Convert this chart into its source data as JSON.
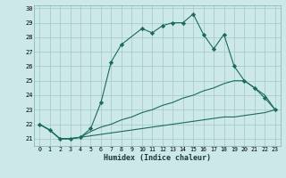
{
  "xlabel": "Humidex (Indice chaleur)",
  "ylabel": "",
  "bg_color": "#cde8e8",
  "grid_color": "#aacccc",
  "line_color": "#1a6b5a",
  "xlim": [
    -0.5,
    23.5
  ],
  "ylim": [
    20.5,
    30.2
  ],
  "yticks": [
    21,
    22,
    23,
    24,
    25,
    26,
    27,
    28,
    29,
    30
  ],
  "xticks": [
    0,
    1,
    2,
    3,
    4,
    5,
    6,
    7,
    8,
    9,
    10,
    11,
    12,
    13,
    14,
    15,
    16,
    17,
    18,
    19,
    20,
    21,
    22,
    23
  ],
  "series": [
    {
      "x": [
        0,
        1,
        2,
        3,
        4,
        5,
        6,
        7,
        8,
        9,
        10,
        11,
        12,
        13,
        14,
        15,
        16,
        17,
        18,
        19,
        20,
        21,
        22,
        23
      ],
      "y": [
        22.0,
        21.6,
        21.0,
        21.0,
        21.1,
        21.2,
        21.3,
        21.4,
        21.5,
        21.6,
        21.7,
        21.8,
        21.9,
        22.0,
        22.1,
        22.2,
        22.3,
        22.4,
        22.5,
        22.5,
        22.6,
        22.7,
        22.8,
        23.0
      ],
      "marker": false
    },
    {
      "x": [
        0,
        1,
        2,
        3,
        4,
        5,
        6,
        7,
        8,
        9,
        10,
        11,
        12,
        13,
        14,
        15,
        16,
        17,
        18,
        19,
        20,
        21,
        22,
        23
      ],
      "y": [
        22.0,
        21.6,
        21.0,
        21.0,
        21.1,
        21.5,
        21.8,
        22.0,
        22.3,
        22.5,
        22.8,
        23.0,
        23.3,
        23.5,
        23.8,
        24.0,
        24.3,
        24.5,
        24.8,
        25.0,
        25.0,
        24.5,
        24.0,
        23.0
      ],
      "marker": false
    },
    {
      "x": [
        0,
        1,
        2,
        3,
        4,
        5,
        6,
        7,
        8,
        10,
        11,
        12,
        13,
        14,
        15,
        16,
        17,
        18,
        19,
        20,
        21,
        22,
        23
      ],
      "y": [
        22.0,
        21.6,
        21.0,
        21.0,
        21.1,
        21.7,
        23.5,
        26.3,
        27.5,
        28.6,
        28.3,
        28.8,
        29.0,
        29.0,
        29.6,
        28.2,
        27.2,
        28.2,
        26.0,
        25.0,
        24.5,
        23.8,
        23.0
      ],
      "marker": true
    }
  ]
}
